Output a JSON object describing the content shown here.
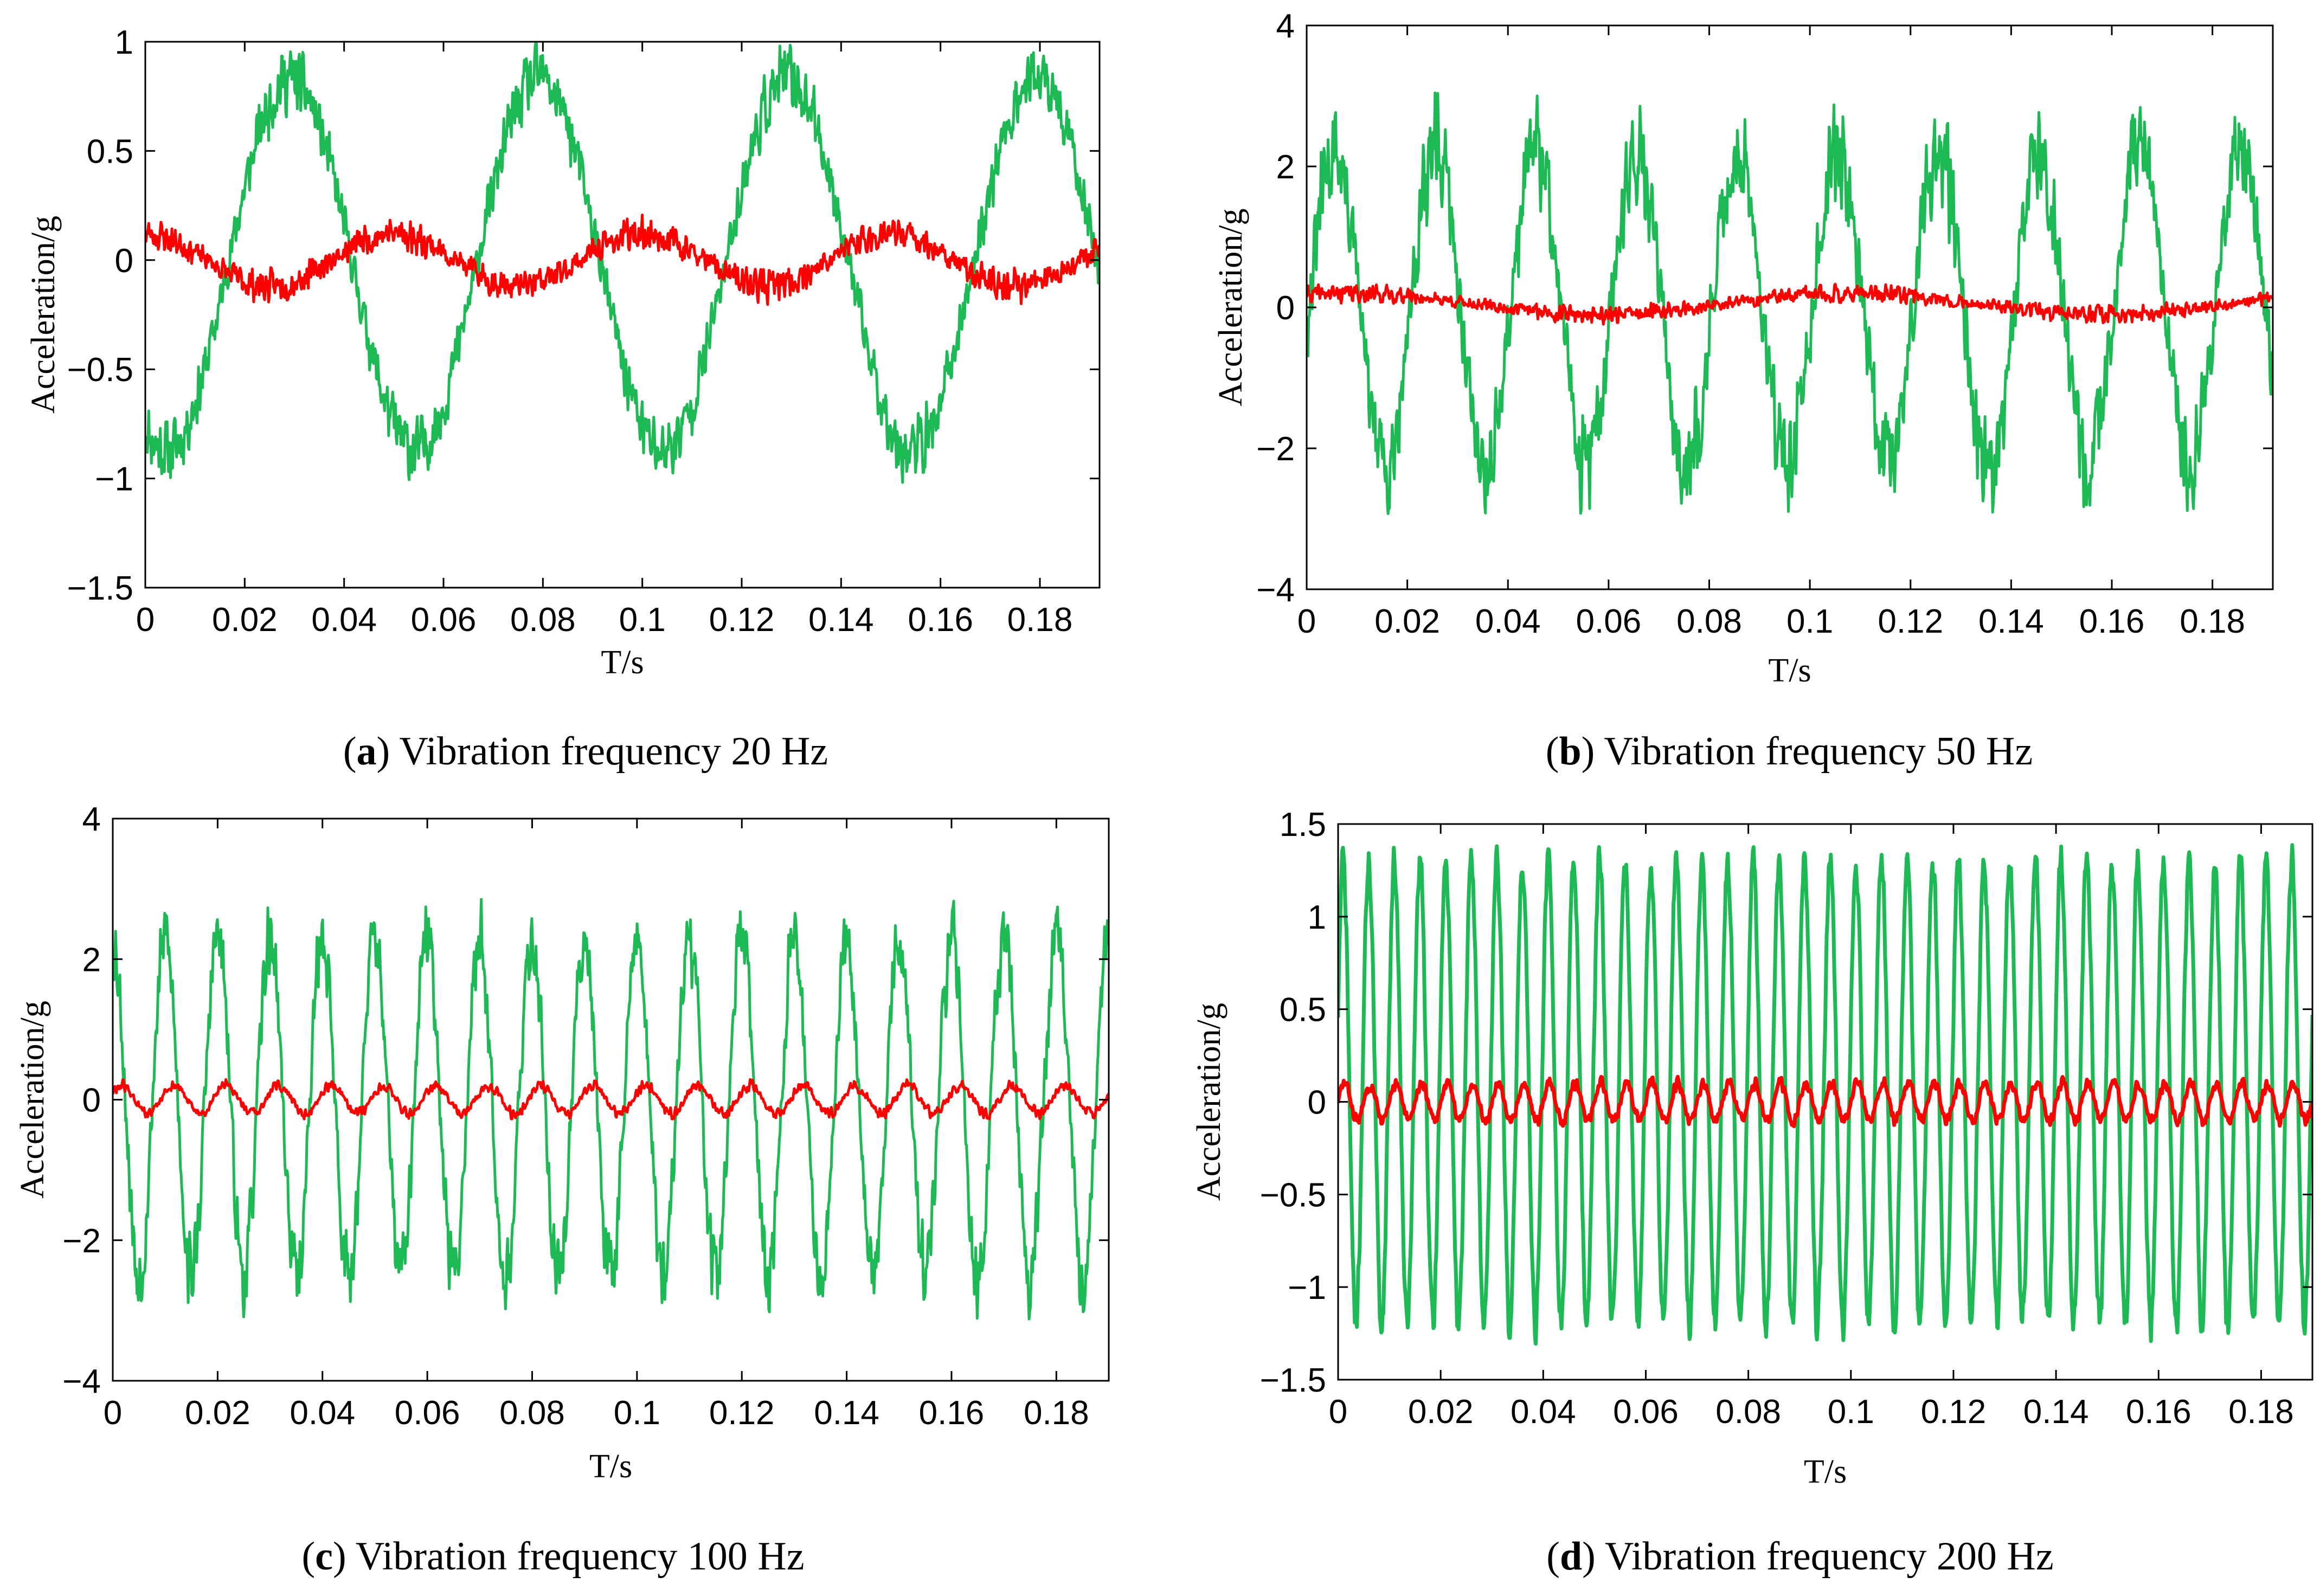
{
  "chart_data": [
    {
      "type": "line",
      "caption": {
        "open": "(",
        "letter": "a",
        "close": ") ",
        "text": "Vibration frequency 20 Hz"
      },
      "xlabel": "T/s",
      "ylabel": "Acceleration/g",
      "xlim": [
        0,
        0.192
      ],
      "ylim": [
        -1.5,
        1
      ],
      "xticks": [
        0,
        0.02,
        0.04,
        0.06,
        0.08,
        0.1,
        0.12,
        0.14,
        0.16,
        0.18
      ],
      "xtick_labels": [
        "0",
        "0.02",
        "0.04",
        "0.06",
        "0.08",
        "0.1",
        "0.12",
        "0.14",
        "0.16",
        "0.18"
      ],
      "yticks": [
        1,
        0.5,
        0,
        -0.5,
        -1,
        -1.5
      ],
      "ytick_labels": [
        "1",
        "0.5",
        "0",
        "−0.5",
        "−1",
        "−1.5"
      ],
      "series": [
        {
          "name": "green",
          "color": "#1db954",
          "frequency_hz": 20,
          "amplitude": 0.85,
          "offset": -0.02,
          "phase_deg": -120,
          "noise": 0.18,
          "seed": 11
        },
        {
          "name": "red",
          "color": "#ff0000",
          "frequency_hz": 20,
          "amplitude": 0.12,
          "offset": 0.0,
          "phase_deg": 90,
          "noise": 0.09,
          "seed": 23
        }
      ]
    },
    {
      "type": "line",
      "caption": {
        "open": "(",
        "letter": "b",
        "close": ") ",
        "text": "Vibration frequency 50 Hz"
      },
      "xlabel": "T/s",
      "ylabel": "Acceleration/g",
      "xlim": [
        0,
        0.192
      ],
      "ylim": [
        -4,
        4
      ],
      "xticks": [
        0,
        0.02,
        0.04,
        0.06,
        0.08,
        0.1,
        0.12,
        0.14,
        0.16,
        0.18
      ],
      "xtick_labels": [
        "0",
        "0.02",
        "0.04",
        "0.06",
        "0.08",
        "0.1",
        "0.12",
        "0.14",
        "0.16",
        "0.18"
      ],
      "yticks": [
        4,
        2,
        0,
        -2,
        -4
      ],
      "ytick_labels": [
        "4",
        "2",
        "0",
        "−2",
        "−4"
      ],
      "series": [
        {
          "name": "green",
          "color": "#1db954",
          "frequency_hz": 50,
          "amplitude": 2.2,
          "offset": 0.0,
          "phase_deg": -10,
          "noise": 0.9,
          "seed": 31
        },
        {
          "name": "red",
          "color": "#ff0000",
          "frequency_hz": 10,
          "amplitude": 0.15,
          "offset": 0.05,
          "phase_deg": 60,
          "noise": 0.15,
          "seed": 41
        }
      ]
    },
    {
      "type": "line",
      "caption": {
        "open": "(",
        "letter": "c",
        "close": ") ",
        "text": "Vibration frequency 100 Hz"
      },
      "xlabel": "T/s",
      "ylabel": "Acceleration/g",
      "xlim": [
        0,
        0.19
      ],
      "ylim": [
        -4,
        4
      ],
      "xticks": [
        0,
        0.02,
        0.04,
        0.06,
        0.08,
        0.1,
        0.12,
        0.14,
        0.16,
        0.18
      ],
      "xtick_labels": [
        "0",
        "0.02",
        "0.04",
        "0.06",
        "0.08",
        "0.1",
        "0.12",
        "0.14",
        "0.16",
        "0.18"
      ],
      "yticks": [
        4,
        2,
        0,
        -2,
        -4
      ],
      "ytick_labels": [
        "4",
        "2",
        "0",
        "−2",
        "−4"
      ],
      "series": [
        {
          "name": "green",
          "color": "#1db954",
          "frequency_hz": 100,
          "amplitude": 2.4,
          "offset": -0.1,
          "phase_deg": 90,
          "noise": 0.7,
          "seed": 53
        },
        {
          "name": "red",
          "color": "#ff0000",
          "frequency_hz": 100,
          "amplitude": 0.2,
          "offset": 0.0,
          "phase_deg": 30,
          "noise": 0.1,
          "seed": 61
        }
      ]
    },
    {
      "type": "line",
      "caption": {
        "open": "(",
        "letter": "d",
        "close": ") ",
        "text": "Vibration frequency 200 Hz"
      },
      "xlabel": "T/s",
      "ylabel": "Acceleration/g",
      "xlim": [
        0,
        0.19
      ],
      "ylim": [
        -1.5,
        1.5
      ],
      "xticks": [
        0,
        0.02,
        0.04,
        0.06,
        0.08,
        0.1,
        0.12,
        0.14,
        0.16,
        0.18
      ],
      "xtick_labels": [
        "0",
        "0.02",
        "0.04",
        "0.06",
        "0.08",
        "0.1",
        "0.12",
        "0.14",
        "0.16",
        "0.18"
      ],
      "yticks": [
        1.5,
        1,
        0.5,
        0,
        -0.5,
        -1,
        -1.5
      ],
      "ytick_labels": [
        "1.5",
        "1",
        "0.5",
        "0",
        "−0.5",
        "−1",
        "−1.5"
      ],
      "series": [
        {
          "name": "green",
          "color": "#1db954",
          "frequency_hz": 200,
          "amplitude": 1.25,
          "offset": 0.05,
          "phase_deg": 20,
          "noise": 0.12,
          "seed": 71
        },
        {
          "name": "red",
          "color": "#ff0000",
          "frequency_hz": 200,
          "amplitude": 0.1,
          "offset": 0.0,
          "phase_deg": 0,
          "noise": 0.04,
          "seed": 83
        }
      ]
    }
  ]
}
